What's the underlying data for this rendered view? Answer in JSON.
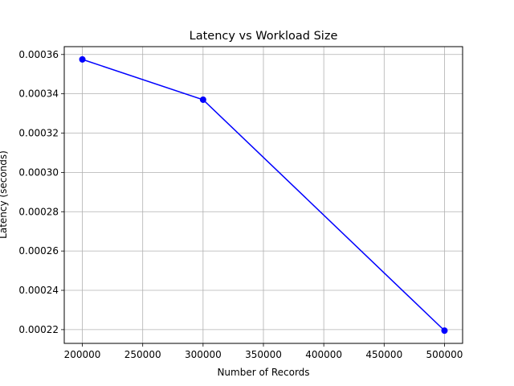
{
  "chart_data": {
    "type": "line",
    "title": "Latency vs Workload Size",
    "xlabel": "Number of Records",
    "ylabel": "Latency (seconds)",
    "x": [
      200000,
      300000,
      500000
    ],
    "series": [
      {
        "values": [
          0.0003575,
          0.000337,
          0.0002195
        ]
      }
    ],
    "xlim": [
      185000,
      515000
    ],
    "ylim": [
      0.000213,
      0.000364
    ],
    "xticks": [
      200000,
      250000,
      300000,
      350000,
      400000,
      450000,
      500000
    ],
    "xtick_labels": [
      "200000",
      "250000",
      "300000",
      "350000",
      "400000",
      "450000",
      "500000"
    ],
    "yticks": [
      0.00022,
      0.00024,
      0.00026,
      0.00028,
      0.0003,
      0.00032,
      0.00034,
      0.00036
    ],
    "ytick_labels": [
      "0.00022",
      "0.00024",
      "0.00026",
      "0.00028",
      "0.00030",
      "0.00032",
      "0.00034",
      "0.00036"
    ],
    "grid": true,
    "marker": "circle",
    "line_color": "#0000ff",
    "grid_color": "#b0b0b0"
  }
}
